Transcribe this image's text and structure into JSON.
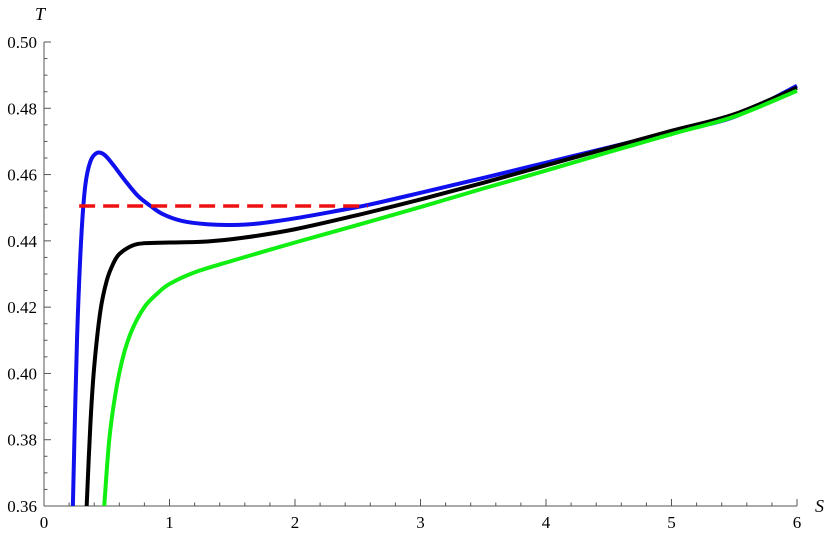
{
  "chart_data": {
    "type": "line",
    "title": "",
    "xlabel": "S",
    "ylabel": "T",
    "xlim": [
      0,
      6
    ],
    "ylim": [
      0.36,
      0.5
    ],
    "grid": false,
    "x_ticks": [
      0,
      1,
      2,
      3,
      4,
      5,
      6
    ],
    "x_tick_labels": [
      "0",
      "1",
      "2",
      "3",
      "4",
      "5",
      "6"
    ],
    "y_ticks": [
      0.36,
      0.38,
      0.4,
      0.42,
      0.44,
      0.46,
      0.48,
      0.5
    ],
    "y_tick_labels": [
      "0.36",
      "0.38",
      "0.40",
      "0.42",
      "0.44",
      "0.46",
      "0.48",
      "0.50"
    ],
    "series": [
      {
        "color": "#1010ee",
        "style": "solid",
        "x": [
          0.23,
          0.25,
          0.27,
          0.3,
          0.33,
          0.37,
          0.42,
          0.48,
          0.55,
          0.65,
          0.75,
          0.85,
          0.95,
          1.1,
          1.3,
          1.5,
          1.7,
          2.0,
          2.3,
          2.6,
          3.0,
          3.5,
          4.0,
          4.5,
          5.0,
          5.5,
          6.0
        ],
        "y": [
          0.36,
          0.392,
          0.418,
          0.443,
          0.457,
          0.464,
          0.4665,
          0.466,
          0.463,
          0.458,
          0.4535,
          0.4505,
          0.448,
          0.446,
          0.445,
          0.4448,
          0.4452,
          0.4468,
          0.4488,
          0.451,
          0.4545,
          0.459,
          0.4636,
          0.4682,
          0.4728,
          0.4774,
          0.4868
        ]
      },
      {
        "color": "#000000",
        "style": "solid",
        "x": [
          0.34,
          0.37,
          0.4,
          0.45,
          0.5,
          0.55,
          0.6,
          0.7,
          0.8,
          1.0,
          1.3,
          1.6,
          2.0,
          2.5,
          3.0,
          3.5,
          4.0,
          4.5,
          5.0,
          5.5,
          6.0
        ],
        "y": [
          0.36,
          0.385,
          0.402,
          0.419,
          0.428,
          0.433,
          0.436,
          0.4385,
          0.4393,
          0.4395,
          0.4398,
          0.441,
          0.4435,
          0.4478,
          0.4525,
          0.4575,
          0.4628,
          0.468,
          0.4732,
          0.4782,
          0.4862
        ]
      },
      {
        "color": "#11ee11",
        "style": "solid",
        "x": [
          0.48,
          0.52,
          0.57,
          0.63,
          0.7,
          0.8,
          0.9,
          1.0,
          1.2,
          1.5,
          2.0,
          2.5,
          3.0,
          3.5,
          4.0,
          4.5,
          5.0,
          5.5,
          6.0
        ],
        "y": [
          0.36,
          0.38,
          0.394,
          0.405,
          0.413,
          0.42,
          0.424,
          0.427,
          0.4305,
          0.434,
          0.4395,
          0.4448,
          0.4502,
          0.4558,
          0.4612,
          0.4668,
          0.4722,
          0.4775,
          0.4853
        ]
      },
      {
        "color": "#ee1111",
        "style": "dashed",
        "x": [
          0.28,
          2.58
        ],
        "y": [
          0.4505,
          0.4505
        ]
      }
    ]
  }
}
